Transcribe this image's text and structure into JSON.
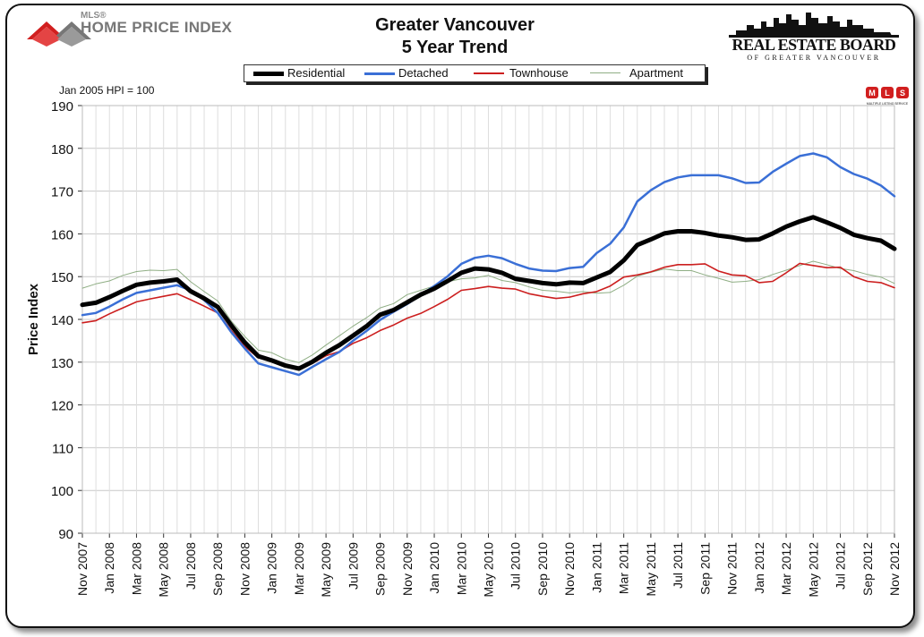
{
  "header": {
    "hpi_logo_small": "MLS®",
    "hpi_logo_text": "HOME PRICE INDEX",
    "title_line1": "Greater Vancouver",
    "title_line2": "5 Year Trend",
    "board_name": "REAL ESTATE BOARD",
    "board_sub": "OF GREATER VANCOUVER",
    "base_note": "Jan 2005 HPI = 100",
    "mls_badge_letters": [
      "M",
      "L",
      "S"
    ],
    "mls_badge_caption": "MULTIPLE LISTING SERVICE"
  },
  "chart_data": {
    "type": "line",
    "title": "Greater Vancouver 5 Year Trend",
    "ylabel": "Price Index",
    "xlabel": "",
    "ylim": [
      90,
      190
    ],
    "yticks": [
      90,
      100,
      110,
      120,
      130,
      140,
      150,
      160,
      170,
      180,
      190
    ],
    "grid": true,
    "legend_position": "top",
    "x": [
      "Nov 2007",
      "Dec 2007",
      "Jan 2008",
      "Feb 2008",
      "Mar 2008",
      "Apr 2008",
      "May 2008",
      "Jun 2008",
      "Jul 2008",
      "Aug 2008",
      "Sep 2008",
      "Oct 2008",
      "Nov 2008",
      "Dec 2008",
      "Jan 2009",
      "Feb 2009",
      "Mar 2009",
      "Apr 2009",
      "May 2009",
      "Jun 2009",
      "Jul 2009",
      "Aug 2009",
      "Sep 2009",
      "Oct 2009",
      "Nov 2009",
      "Dec 2009",
      "Jan 2010",
      "Feb 2010",
      "Mar 2010",
      "Apr 2010",
      "May 2010",
      "Jun 2010",
      "Jul 2010",
      "Aug 2010",
      "Sep 2010",
      "Oct 2010",
      "Nov 2010",
      "Dec 2010",
      "Jan 2011",
      "Feb 2011",
      "Mar 2011",
      "Apr 2011",
      "May 2011",
      "Jun 2011",
      "Jul 2011",
      "Aug 2011",
      "Sep 2011",
      "Oct 2011",
      "Nov 2011",
      "Dec 2011",
      "Jan 2012",
      "Feb 2012",
      "Mar 2012",
      "Apr 2012",
      "May 2012",
      "Jun 2012",
      "Jul 2012",
      "Aug 2012",
      "Sep 2012",
      "Oct 2012",
      "Nov 2012"
    ],
    "x_tick_labels": [
      "Nov 2007",
      "Jan 2008",
      "Mar 2008",
      "May 2008",
      "Jul 2008",
      "Sep 2008",
      "Nov 2008",
      "Jan 2009",
      "Mar 2009",
      "May 2009",
      "Jul 2009",
      "Sep 2009",
      "Nov 2009",
      "Jan 2010",
      "Mar 2010",
      "May 2010",
      "Jul 2010",
      "Sep 2010",
      "Nov 2010",
      "Jan 2011",
      "Mar 2011",
      "May 2011",
      "Jul 2011",
      "Sep 2011",
      "Nov 2011",
      "Jan 2012",
      "Mar 2012",
      "May 2012",
      "Jul 2012",
      "Sep 2012",
      "Nov 2012"
    ],
    "series": [
      {
        "name": "Residential",
        "color": "#000000",
        "width": 5,
        "values": [
          143.4,
          143.9,
          145.2,
          146.7,
          148.1,
          148.6,
          148.9,
          149.3,
          146.6,
          144.9,
          142.9,
          138.6,
          134.6,
          131.4,
          130.4,
          129.2,
          128.5,
          130.1,
          132.2,
          134.0,
          136.2,
          138.4,
          141.1,
          142.2,
          144.0,
          145.8,
          147.2,
          149.0,
          150.9,
          151.9,
          151.7,
          150.9,
          149.5,
          149.0,
          148.5,
          148.2,
          148.6,
          148.5,
          149.8,
          151.1,
          153.8,
          157.4,
          158.7,
          160.1,
          160.6,
          160.6,
          160.2,
          159.6,
          159.2,
          158.6,
          158.7,
          160.1,
          161.7,
          162.9,
          163.9,
          162.7,
          161.4,
          159.8,
          159.0,
          158.4,
          156.5
        ]
      },
      {
        "name": "Detached",
        "color": "#3a6fd6",
        "width": 2.5,
        "values": [
          141.0,
          141.5,
          143.0,
          144.7,
          146.2,
          146.8,
          147.4,
          148.0,
          146.8,
          144.5,
          141.5,
          137.0,
          133.2,
          129.7,
          128.8,
          127.9,
          127.0,
          128.9,
          130.7,
          132.4,
          135.0,
          137.3,
          139.9,
          141.8,
          143.6,
          145.7,
          147.8,
          150.1,
          153.0,
          154.4,
          154.9,
          154.3,
          153.0,
          151.9,
          151.4,
          151.3,
          152.0,
          152.3,
          155.5,
          157.7,
          161.5,
          167.6,
          170.2,
          172.1,
          173.2,
          173.7,
          173.7,
          173.7,
          173.0,
          171.9,
          172.0,
          174.5,
          176.4,
          178.2,
          178.8,
          177.9,
          175.6,
          174.0,
          172.9,
          171.3,
          168.8
        ]
      },
      {
        "name": "Townhouse",
        "color": "#cc1f1f",
        "width": 1.6,
        "values": [
          139.2,
          139.7,
          141.3,
          142.7,
          144.1,
          144.8,
          145.4,
          146.0,
          144.6,
          143.1,
          141.5,
          137.4,
          133.7,
          131.0,
          130.5,
          129.1,
          128.3,
          129.7,
          131.5,
          132.5,
          134.4,
          135.7,
          137.4,
          138.7,
          140.3,
          141.4,
          143.0,
          144.7,
          146.8,
          147.2,
          147.7,
          147.3,
          147.1,
          146.0,
          145.4,
          144.9,
          145.2,
          146.0,
          146.5,
          147.8,
          149.9,
          150.4,
          151.1,
          152.2,
          152.8,
          152.8,
          153.0,
          151.3,
          150.4,
          150.2,
          148.6,
          148.9,
          150.9,
          153.1,
          152.6,
          152.1,
          152.2,
          150.0,
          148.9,
          148.6,
          147.4
        ]
      },
      {
        "name": "Apartment",
        "color": "#8fae84",
        "width": 1.0,
        "values": [
          147.3,
          148.3,
          149.0,
          150.3,
          151.2,
          151.5,
          151.4,
          151.7,
          148.8,
          146.5,
          144.3,
          139.6,
          136.0,
          132.8,
          132.2,
          130.7,
          129.9,
          131.7,
          134.0,
          136.2,
          138.4,
          140.4,
          142.7,
          143.7,
          145.8,
          146.8,
          147.8,
          148.8,
          149.5,
          149.7,
          150.3,
          149.1,
          148.6,
          147.6,
          146.8,
          146.6,
          146.2,
          146.5,
          146.1,
          146.3,
          148.0,
          150.1,
          151.0,
          151.8,
          151.4,
          151.4,
          150.4,
          149.6,
          148.7,
          148.9,
          149.3,
          150.5,
          151.5,
          152.6,
          153.6,
          152.8,
          151.9,
          151.4,
          150.5,
          149.9,
          148.4
        ]
      }
    ]
  }
}
